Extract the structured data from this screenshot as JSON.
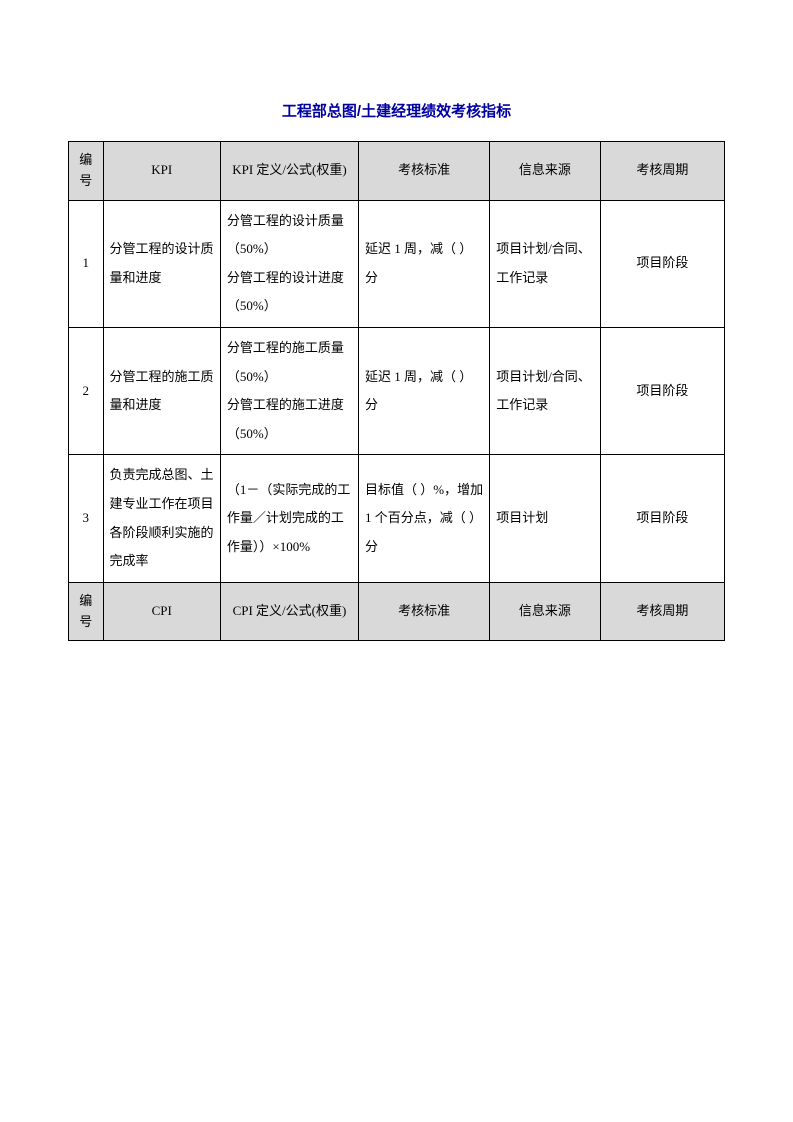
{
  "title": "工程部总图/土建经理绩效考核指标",
  "colors": {
    "title_color": "#0000a0",
    "header_bg": "#d9d9d9",
    "border_color": "#000000",
    "text_color": "#000000",
    "background": "#ffffff"
  },
  "headers_kpi": {
    "num": "编号",
    "kpi": "KPI",
    "def": "KPI 定义/公式(权重)",
    "std": "考核标准",
    "src": "信息来源",
    "period": "考核周期"
  },
  "headers_cpi": {
    "num": "编号",
    "cpi": "CPI",
    "def": "CPI 定义/公式(权重)",
    "std": "考核标准",
    "src": "信息来源",
    "period": "考核周期"
  },
  "rows": [
    {
      "num": "1",
      "kpi": "分管工程的设计质量和进度",
      "def": "分管工程的设计质量（50%）\n分管工程的设计进度（50%）",
      "std": "延迟 1 周，减（  ）分",
      "src": "项目计划/合同、工作记录",
      "period": "项目阶段"
    },
    {
      "num": "2",
      "kpi": "分管工程的施工质量和进度",
      "def": "分管工程的施工质量（50%）\n分管工程的施工进度（50%）",
      "std": "延迟 1 周，减（  ）分",
      "src": "项目计划/合同、工作记录",
      "period": "项目阶段"
    },
    {
      "num": "3",
      "kpi": "负责完成总图、土建专业工作在项目各阶段顺利实施的完成率",
      "def": "（1－（实际完成的工作量／计划完成的工作量））×100%",
      "std": "目标值（  ）%，增加 1 个百分点，减（  ）分",
      "src": "项目计划",
      "period": "项目阶段"
    }
  ]
}
